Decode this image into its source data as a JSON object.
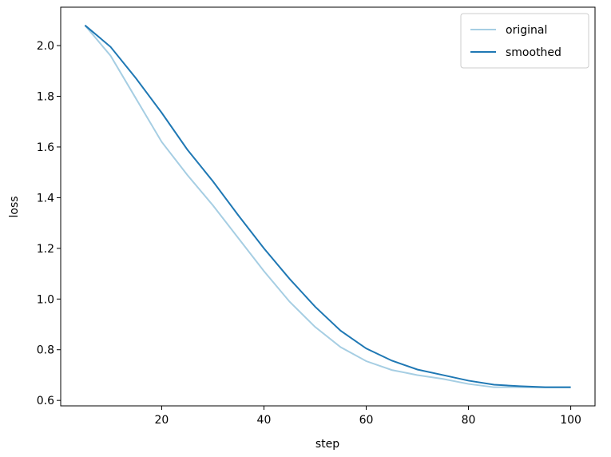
{
  "chart_data": {
    "type": "line",
    "x_label": "step",
    "y_label": "loss",
    "x": [
      5,
      10,
      15,
      20,
      25,
      30,
      35,
      40,
      45,
      50,
      55,
      60,
      65,
      70,
      75,
      80,
      85,
      90,
      95,
      100
    ],
    "series": [
      {
        "name": "original",
        "color": "#a6cee3",
        "values": [
          2.08,
          1.96,
          1.79,
          1.62,
          1.49,
          1.37,
          1.24,
          1.11,
          0.99,
          0.89,
          0.81,
          0.755,
          0.72,
          0.7,
          0.685,
          0.665,
          0.652,
          0.652,
          0.651,
          0.651
        ]
      },
      {
        "name": "smoothed",
        "color": "#1f78b4",
        "values": [
          2.08,
          1.995,
          1.87,
          1.735,
          1.59,
          1.465,
          1.33,
          1.2,
          1.08,
          0.97,
          0.875,
          0.805,
          0.757,
          0.722,
          0.7,
          0.678,
          0.662,
          0.656,
          0.652,
          0.652
        ]
      }
    ],
    "xlim": [
      0.25,
      104.75
    ],
    "xticks": [
      20,
      40,
      60,
      80,
      100
    ],
    "ylim": [
      0.5785,
      2.1515
    ],
    "yticks": [
      0.6,
      0.8,
      {
        "value": 1.0,
        "label": "1.0"
      },
      1.2,
      1.4,
      1.6,
      1.8,
      {
        "value": 2.0,
        "label": "2.0"
      }
    ],
    "legend": "upper right"
  }
}
